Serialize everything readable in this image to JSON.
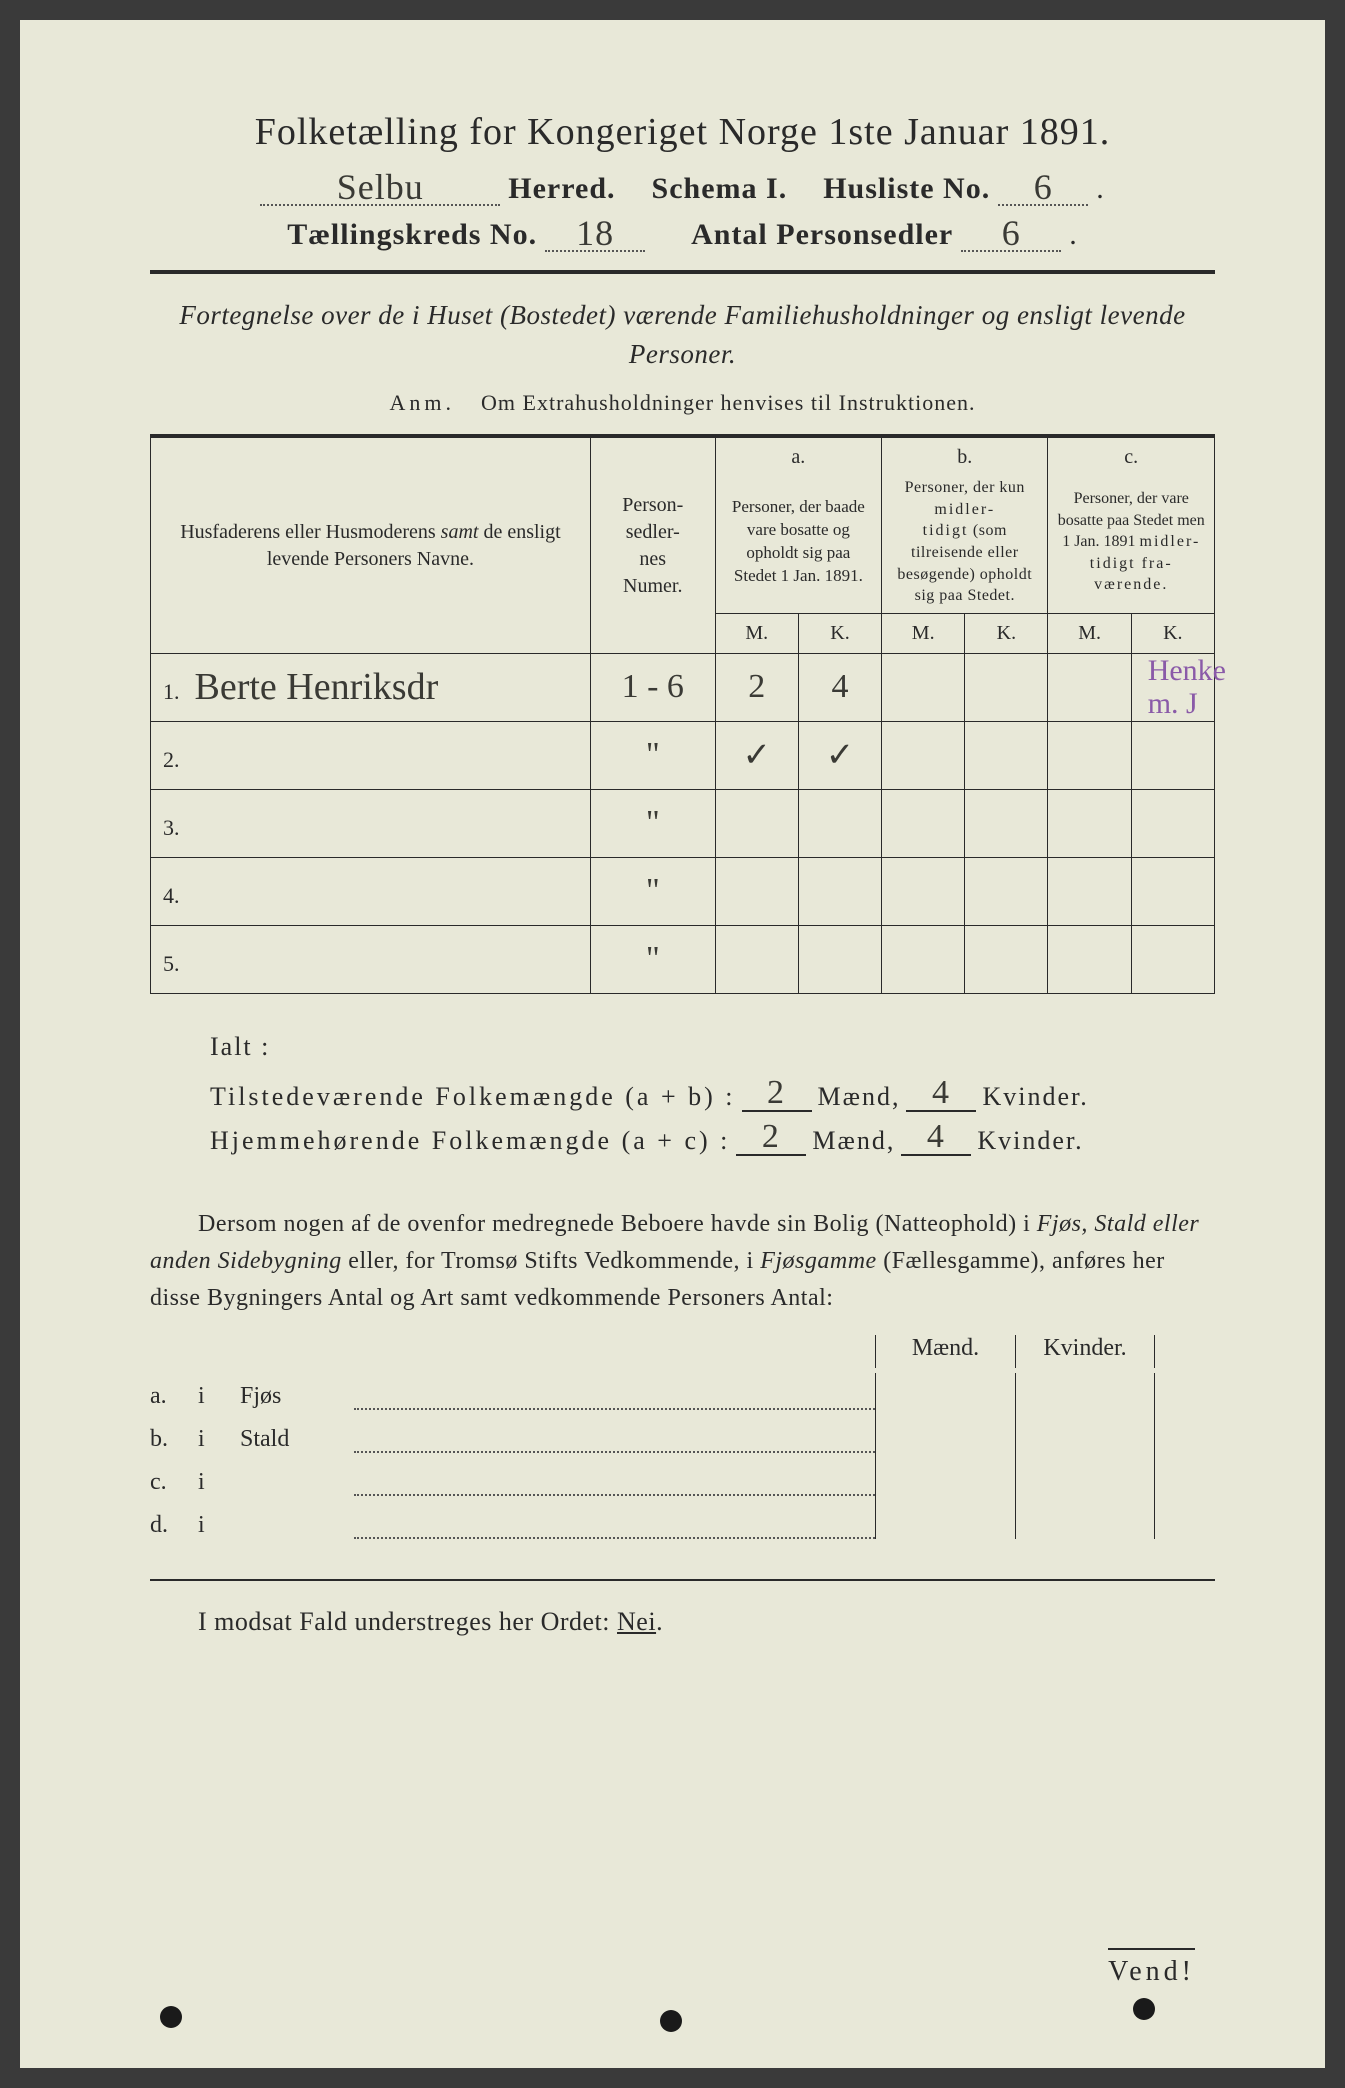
{
  "colors": {
    "paper": "#e8e8d8",
    "ink": "#2a2a2a",
    "handwriting": "#3a3a35",
    "purple_pencil": "#8a5aa8",
    "background": "#3a3a3a"
  },
  "header": {
    "title": "Folketælling for Kongeriget Norge 1ste Januar 1891.",
    "herred_value": "Selbu",
    "herred_label": "Herred.",
    "schema_label": "Schema I.",
    "husliste_label": "Husliste No.",
    "husliste_value": "6",
    "kreds_label": "Tællingskreds No.",
    "kreds_value": "18",
    "personsedler_label": "Antal Personsedler",
    "personsedler_value": "6"
  },
  "subtitle": "Fortegnelse over de i Huset (Bostedet) værende Familiehusholdninger og ensligt levende Personer.",
  "anm": {
    "prefix": "Anm.",
    "text": "Om Extrahusholdninger henvises til Instruktionen."
  },
  "table_headers": {
    "names": "Husfaderens eller Husmoderens samt de ensligt levende Personers Navne.",
    "numer": "Person-\nsedler-\nnes\nNumer.",
    "a_label": "a.",
    "a_text": "Personer, der baade vare bosatte og opholdt sig paa Stedet 1 Jan. 1891.",
    "b_label": "b.",
    "b_text": "Personer, der kun midlertidigt (som tilreisende eller besøgende) opholdt sig paa Stedet.",
    "c_label": "c.",
    "c_text": "Personer, der vare bosatte paa Stedet men 1 Jan. 1891 midlertidigt fraværende.",
    "m": "M.",
    "k": "K."
  },
  "rows": [
    {
      "n": "1.",
      "name": "Berte Henriksdr",
      "num": "1 - 6",
      "am": "2",
      "ak": "4",
      "bm": "",
      "bk": "",
      "cm": "",
      "ck": "",
      "note": "Henke\nm. J"
    },
    {
      "n": "2.",
      "name": "",
      "num": "\"",
      "am": "✓",
      "ak": "✓",
      "bm": "",
      "bk": "",
      "cm": "",
      "ck": ""
    },
    {
      "n": "3.",
      "name": "",
      "num": "\"",
      "am": "",
      "ak": "",
      "bm": "",
      "bk": "",
      "cm": "",
      "ck": ""
    },
    {
      "n": "4.",
      "name": "",
      "num": "\"",
      "am": "",
      "ak": "",
      "bm": "",
      "bk": "",
      "cm": "",
      "ck": ""
    },
    {
      "n": "5.",
      "name": "",
      "num": "\"",
      "am": "",
      "ak": "",
      "bm": "",
      "bk": "",
      "cm": "",
      "ck": ""
    }
  ],
  "ialt": {
    "title": "Ialt :",
    "line1_label": "Tilstedeværende Folkemængde (a + b) :",
    "line2_label": "Hjemmehørende Folkemængde (a + c) :",
    "maend": "Mænd,",
    "kvinder": "Kvinder.",
    "l1_m": "2",
    "l1_k": "4",
    "l2_m": "2",
    "l2_k": "4"
  },
  "paragraph": "Dersom nogen af de ovenfor medregnede Beboere havde sin Bolig (Natteophold) i Fjøs, Stald eller anden Sidebygning eller, for Tromsø Stifts Vedkommende, i Fjøsgamme (Fællesgamme), anføres her disse Bygningers Antal og Art samt vedkommende Personers Antal:",
  "mk_section": {
    "maend": "Mænd.",
    "kvinder": "Kvinder.",
    "items": [
      {
        "key": "a.",
        "i": "i",
        "label": "Fjøs"
      },
      {
        "key": "b.",
        "i": "i",
        "label": "Stald"
      },
      {
        "key": "c.",
        "i": "i",
        "label": ""
      },
      {
        "key": "d.",
        "i": "i",
        "label": ""
      }
    ]
  },
  "nei_line": {
    "prefix": "I modsat Fald understreges her Ordet: ",
    "word": "Nei"
  },
  "vend": "Vend!"
}
